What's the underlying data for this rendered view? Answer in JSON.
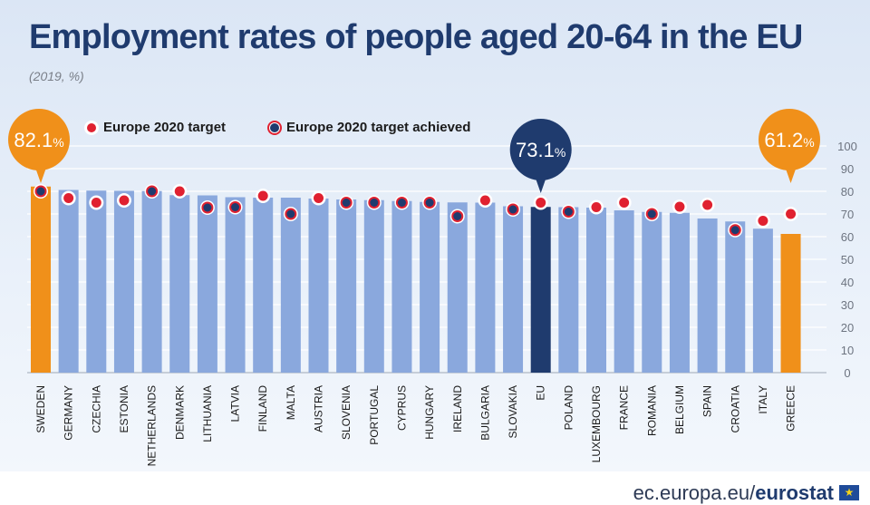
{
  "title": "Employment rates of people aged 20-64 in the EU",
  "subtitle": "(2019, %)",
  "legend": {
    "target_label": "Europe 2020 target",
    "achieved_label": "Europe 2020 target achieved"
  },
  "source": {
    "domain": "ec.europa.eu/",
    "brand": "eurostat"
  },
  "colors": {
    "bar": "#8aa8dd",
    "highlight_bar": "#f0901a",
    "eu_bar": "#1f3b6e",
    "target_dot": "#e02130",
    "achieved_dot": "#1f3b6e",
    "title": "#1f3b6e"
  },
  "callouts": [
    {
      "category": "SWEDEN",
      "text": "82.1",
      "suffix": "%"
    },
    {
      "category": "EU",
      "text": "73.1",
      "suffix": "%"
    },
    {
      "category": "GREECE",
      "text": "61.2",
      "suffix": "%"
    }
  ],
  "chart_data": {
    "type": "bar",
    "title": "Employment rates of people aged 20-64 in the EU",
    "subtitle": "(2019, %)",
    "ylim": [
      0,
      100
    ],
    "yticks": [
      0,
      10,
      20,
      30,
      40,
      50,
      60,
      70,
      80,
      90,
      100
    ],
    "y_axis_position": "right",
    "grid": true,
    "legend_position": "top-left",
    "categories": [
      "SWEDEN",
      "GERMANY",
      "CZECHIA",
      "ESTONIA",
      "NETHERLANDS",
      "DENMARK",
      "LITHUANIA",
      "LATVIA",
      "FINLAND",
      "MALTA",
      "AUSTRIA",
      "SLOVENIA",
      "PORTUGAL",
      "CYPRUS",
      "HUNGARY",
      "IRELAND",
      "BULGARIA",
      "SLOVAKIA",
      "EU",
      "POLAND",
      "LUXEMBOURG",
      "FRANCE",
      "ROMANIA",
      "BELGIUM",
      "SPAIN",
      "CROATIA",
      "ITALY",
      "GREECE"
    ],
    "series": [
      {
        "name": "",
        "values": [
          82.1,
          80.6,
          80.3,
          80.2,
          80.1,
          78.3,
          78.2,
          77.4,
          77.2,
          77.2,
          76.8,
          76.4,
          76.1,
          75.7,
          75.3,
          75.1,
          75.0,
          73.4,
          73.1,
          73.0,
          72.8,
          71.6,
          70.9,
          70.5,
          68.0,
          66.7,
          63.5,
          61.2
        ]
      },
      {
        "name": "Europe 2020 target",
        "values": [
          80,
          77,
          75,
          76,
          80,
          80,
          72.8,
          73,
          78,
          70,
          77,
          75,
          75,
          75,
          75,
          69,
          76,
          72,
          75,
          71,
          73,
          75,
          70,
          73.2,
          74,
          62.9,
          67,
          70
        ]
      }
    ],
    "target_achieved": [
      true,
      false,
      false,
      false,
      true,
      false,
      true,
      true,
      false,
      true,
      false,
      true,
      true,
      true,
      true,
      true,
      false,
      true,
      false,
      true,
      false,
      false,
      true,
      false,
      false,
      true,
      false,
      false
    ]
  }
}
